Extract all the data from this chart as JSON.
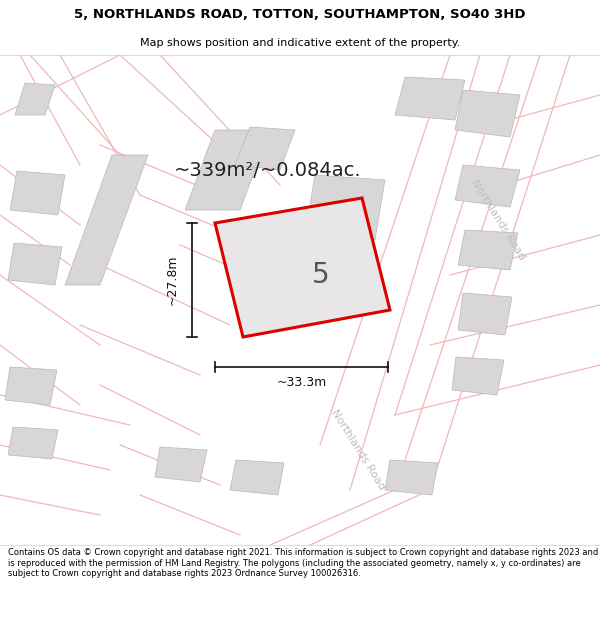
{
  "title_line1": "5, NORTHLANDS ROAD, TOTTON, SOUTHAMPTON, SO40 3HD",
  "title_line2": "Map shows position and indicative extent of the property.",
  "area_text": "~339m²/~0.084ac.",
  "label_5": "5",
  "dim_height": "~27.8m",
  "dim_width": "~33.3m",
  "road_label_upper": "Northlands Road",
  "road_label_lower": "Northlands Road",
  "footer_text": "Contains OS data © Crown copyright and database right 2021. This information is subject to Crown copyright and database rights 2023 and is reproduced with the permission of HM Land Registry. The polygons (including the associated geometry, namely x, y co-ordinates) are subject to Crown copyright and database rights 2023 Ordnance Survey 100026316.",
  "map_bg": "#f7f4f4",
  "plot_fill": "#e8e6e6",
  "plot_edge": "#dd0000",
  "gray_fill": "#d8d6d6",
  "gray_edge": "#b8b6b6",
  "pink_line": "#f0b8b8",
  "dim_color": "#111111",
  "road_text_color": "#c0bebe",
  "title_bg": "#ffffff",
  "footer_bg": "#ffffff",
  "area_color": "#222222",
  "label_color": "#555555",
  "title_fontsize": 9.5,
  "subtitle_fontsize": 8.0,
  "area_fontsize": 14.0,
  "label_fontsize": 20,
  "dim_fontsize": 9,
  "road_fontsize": 8,
  "footer_fontsize": 6.0
}
